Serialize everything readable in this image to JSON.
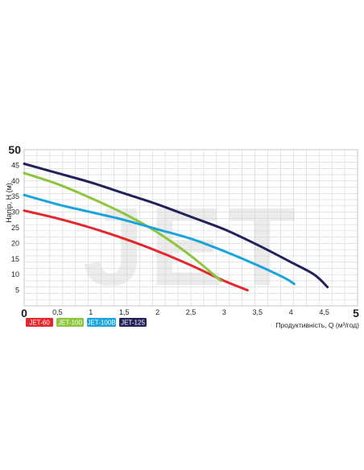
{
  "chart_data": {
    "type": "line",
    "ylabel": "Напір, H (м)",
    "xlabel": "Продуктивність, Q (м³/год)",
    "xlim": [
      0,
      5
    ],
    "ylim": [
      0,
      50
    ],
    "x_ticks": [
      "0",
      "0,5",
      "1",
      "1,5",
      "2",
      "2,5",
      "3",
      "3,5",
      "4",
      "4,5",
      "5"
    ],
    "y_ticks": [
      "0",
      "5",
      "10",
      "15",
      "20",
      "25",
      "30",
      "35",
      "40",
      "45",
      "50"
    ],
    "grid": true,
    "watermark": "JET",
    "series": [
      {
        "name": "JET-60",
        "color": "#e4262d",
        "x": [
          0,
          0.5,
          1,
          1.5,
          2,
          2.5,
          3,
          3.35
        ],
        "y": [
          30.5,
          28,
          25,
          21.5,
          17.5,
          13,
          8,
          5
        ]
      },
      {
        "name": "JET-100",
        "color": "#8cc63f",
        "x": [
          0,
          0.5,
          1,
          1.5,
          2,
          2.5,
          2.95
        ],
        "y": [
          42.5,
          39,
          34.5,
          29.5,
          23.5,
          16,
          8
        ]
      },
      {
        "name": "JET-100B",
        "color": "#1aa4db",
        "x": [
          0,
          0.5,
          1,
          1.5,
          2,
          2.5,
          3,
          3.5,
          3.9,
          4.05
        ],
        "y": [
          35.5,
          32.5,
          30,
          27.5,
          24.5,
          21.5,
          17.5,
          13,
          9,
          7
        ]
      },
      {
        "name": "JET-125",
        "color": "#22225a",
        "x": [
          0,
          0.5,
          1,
          1.5,
          2,
          2.5,
          3,
          3.5,
          4,
          4.35,
          4.55
        ],
        "y": [
          45.5,
          42.5,
          39.5,
          36,
          32.5,
          28.5,
          24.5,
          19.5,
          14,
          10,
          6
        ]
      }
    ]
  }
}
